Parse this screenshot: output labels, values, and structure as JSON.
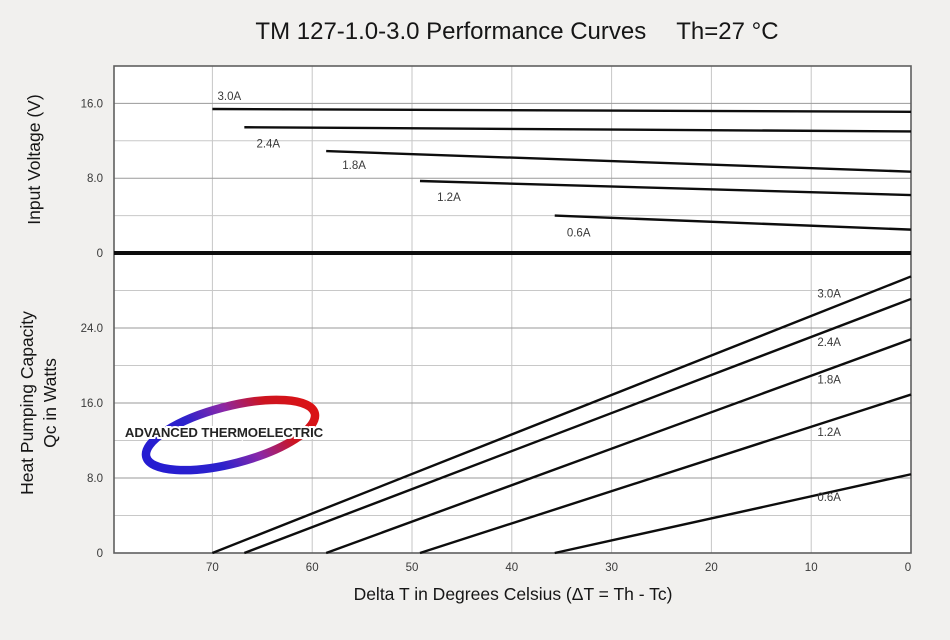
{
  "page": {
    "background": "#f1f0ee"
  },
  "chart_data": {
    "type": "line",
    "title": "TM 127-1.0-3.0 Performance Curves",
    "condition": "Th=27 °C",
    "xlabel": "Delta T in Degrees Celsius    (ΔT = Th - Tc)",
    "x": {
      "reversed": true,
      "view_min": 0,
      "view_max": 79.9,
      "ticks": [
        70,
        60,
        50,
        40,
        30,
        20,
        10,
        0
      ]
    },
    "panels": [
      {
        "id": "voltage",
        "ylabel_lines": [
          "Input Voltage (V)"
        ],
        "ylim": [
          0,
          20
        ],
        "yticks": [
          {
            "value": 16,
            "label": "16.0"
          },
          {
            "value": 8,
            "label": "8.0"
          },
          {
            "value": 0,
            "label": "0"
          }
        ],
        "major_gridlines": [
          8,
          16
        ],
        "minor_gridlines": [
          4,
          12
        ],
        "series": [
          {
            "name": "3.0A",
            "points": [
              [
                70,
                15.4
              ],
              [
                0,
                15.1
              ]
            ],
            "label_at": [
              68.3,
              16.8
            ]
          },
          {
            "name": "2.4A",
            "points": [
              [
                66.8,
                13.45
              ],
              [
                0,
                13.0
              ]
            ],
            "label_at": [
              64.4,
              11.7
            ]
          },
          {
            "name": "1.8A",
            "points": [
              [
                58.6,
                10.9
              ],
              [
                0,
                8.7
              ]
            ],
            "label_at": [
              55.8,
              9.4
            ]
          },
          {
            "name": "1.2A",
            "points": [
              [
                49.2,
                7.7
              ],
              [
                0,
                6.2
              ]
            ],
            "label_at": [
              46.3,
              6.0
            ]
          },
          {
            "name": "0.6A",
            "points": [
              [
                35.7,
                4.0
              ],
              [
                0,
                2.5
              ]
            ],
            "label_at": [
              33.3,
              2.2
            ]
          }
        ]
      },
      {
        "id": "qc",
        "ylabel_lines": [
          "Heat Pumping Capacity",
          "Qc in Watts"
        ],
        "ylim": [
          0,
          32
        ],
        "yticks": [
          {
            "value": 24,
            "label": "24.0"
          },
          {
            "value": 16,
            "label": "16.0"
          },
          {
            "value": 8,
            "label": "8.0"
          },
          {
            "value": 0,
            "label": "0"
          }
        ],
        "major_gridlines": [
          8,
          16,
          24
        ],
        "minor_gridlines": [
          4,
          12,
          20,
          28
        ],
        "series": [
          {
            "name": "3.0A",
            "points": [
              [
                70,
                0
              ],
              [
                0,
                29.5
              ]
            ],
            "label_at": [
              8.2,
              27.7
            ]
          },
          {
            "name": "2.4A",
            "points": [
              [
                66.8,
                0
              ],
              [
                0,
                27.1
              ]
            ],
            "label_at": [
              8.2,
              22.5
            ]
          },
          {
            "name": "1.8A",
            "points": [
              [
                58.6,
                0
              ],
              [
                0,
                22.8
              ]
            ],
            "label_at": [
              8.2,
              18.5
            ]
          },
          {
            "name": "1.2A",
            "points": [
              [
                49.2,
                0
              ],
              [
                0,
                16.9
              ]
            ],
            "label_at": [
              8.2,
              12.9
            ]
          },
          {
            "name": "0.6A",
            "points": [
              [
                35.7,
                0
              ],
              [
                0,
                8.4
              ]
            ],
            "label_at": [
              8.2,
              6.0
            ]
          }
        ]
      }
    ]
  },
  "logo": {
    "text": "ADVANCED THERMOELECTRIC",
    "blue": "#241bd2",
    "red": "#de1212"
  },
  "colors": {
    "plot_background": "#ffffff",
    "frame": "#5f5f5f",
    "grid_major": "#9a9a9a",
    "grid_minor": "#c8c8c8",
    "grid_vertical": "#c6c6c6",
    "curve": "#0d0d0d",
    "text": "#161616"
  }
}
